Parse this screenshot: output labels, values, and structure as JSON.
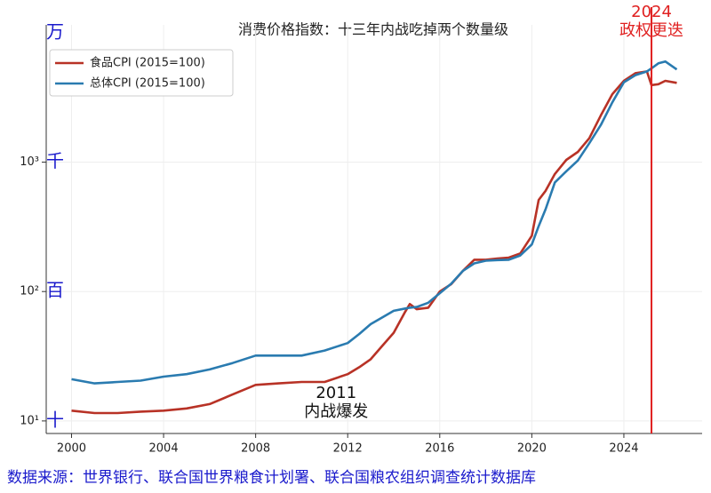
{
  "chart_data": {
    "type": "line",
    "title": "消费价格指数：十三年内战吃掉两个数量级",
    "source": "数据来源：世界银行、联合国世界粮食计划署、联合国粮农组织调查统计数据库",
    "log_y": true,
    "grid": true,
    "legend": "upper left",
    "xlim": [
      1998.9,
      2027.4
    ],
    "ylim": [
      8,
      11500
    ],
    "xticks": [
      2000,
      2004,
      2008,
      2012,
      2016,
      2020,
      2024
    ],
    "yticks": [
      {
        "value": 10,
        "label": "10¹"
      },
      {
        "value": 100,
        "label": "10²"
      },
      {
        "value": 1000,
        "label": "10³"
      }
    ],
    "y_unit_ticks": [
      {
        "value": 10,
        "label": "十"
      },
      {
        "value": 100,
        "label": "百"
      },
      {
        "value": 1000,
        "label": "千"
      },
      {
        "value": 10000,
        "label": "万"
      }
    ],
    "x": [
      2000,
      2001,
      2002,
      2003,
      2004,
      2005,
      2006,
      2007,
      2008,
      2009,
      2010,
      2011,
      2012,
      2012.5,
      2013,
      2013.5,
      2014,
      2014.5,
      2014.7,
      2015,
      2015.5,
      2016,
      2016.5,
      2017,
      2017.5,
      2018,
      2018.5,
      2019,
      2019.5,
      2020,
      2020.3,
      2020.6,
      2021,
      2021.5,
      2022,
      2022.5,
      2023,
      2023.5,
      2024,
      2024.5,
      2025,
      2025.2,
      2025.5,
      2025.8,
      2026.3
    ],
    "series": [
      {
        "name": "食品CPI (2015=100)",
        "color": "#b83226",
        "values": [
          12,
          11.5,
          11.5,
          11.8,
          12,
          12.5,
          13.5,
          16,
          19,
          19.5,
          20,
          20,
          23,
          26,
          30,
          38,
          48,
          70,
          80,
          73,
          75,
          100,
          114,
          144,
          176,
          176,
          180,
          183,
          197,
          270,
          510,
          600,
          810,
          1040,
          1200,
          1530,
          2300,
          3350,
          4250,
          4870,
          5020,
          3940,
          4000,
          4250,
          4100
        ]
      },
      {
        "name": "总体CPI (2015=100)",
        "color": "#2a7bb0",
        "values": [
          21,
          19.5,
          20,
          20.5,
          22,
          23,
          25,
          28,
          32,
          32,
          32,
          35,
          40,
          47,
          56,
          63,
          71,
          74,
          75,
          76,
          82,
          97,
          115,
          144,
          165,
          173,
          175,
          176,
          190,
          231,
          320,
          433,
          697,
          850,
          1030,
          1400,
          1940,
          2900,
          4140,
          4700,
          5020,
          5300,
          5800,
          6000,
          5200
        ]
      }
    ],
    "event_line": {
      "x": 2025.2,
      "color": "#e02020"
    },
    "annotations": [
      {
        "lines": [
          "2011",
          "内战爆发"
        ],
        "color": "#111111"
      },
      {
        "lines": [
          "2024",
          "政权更迭"
        ],
        "color": "#e02020"
      }
    ]
  }
}
